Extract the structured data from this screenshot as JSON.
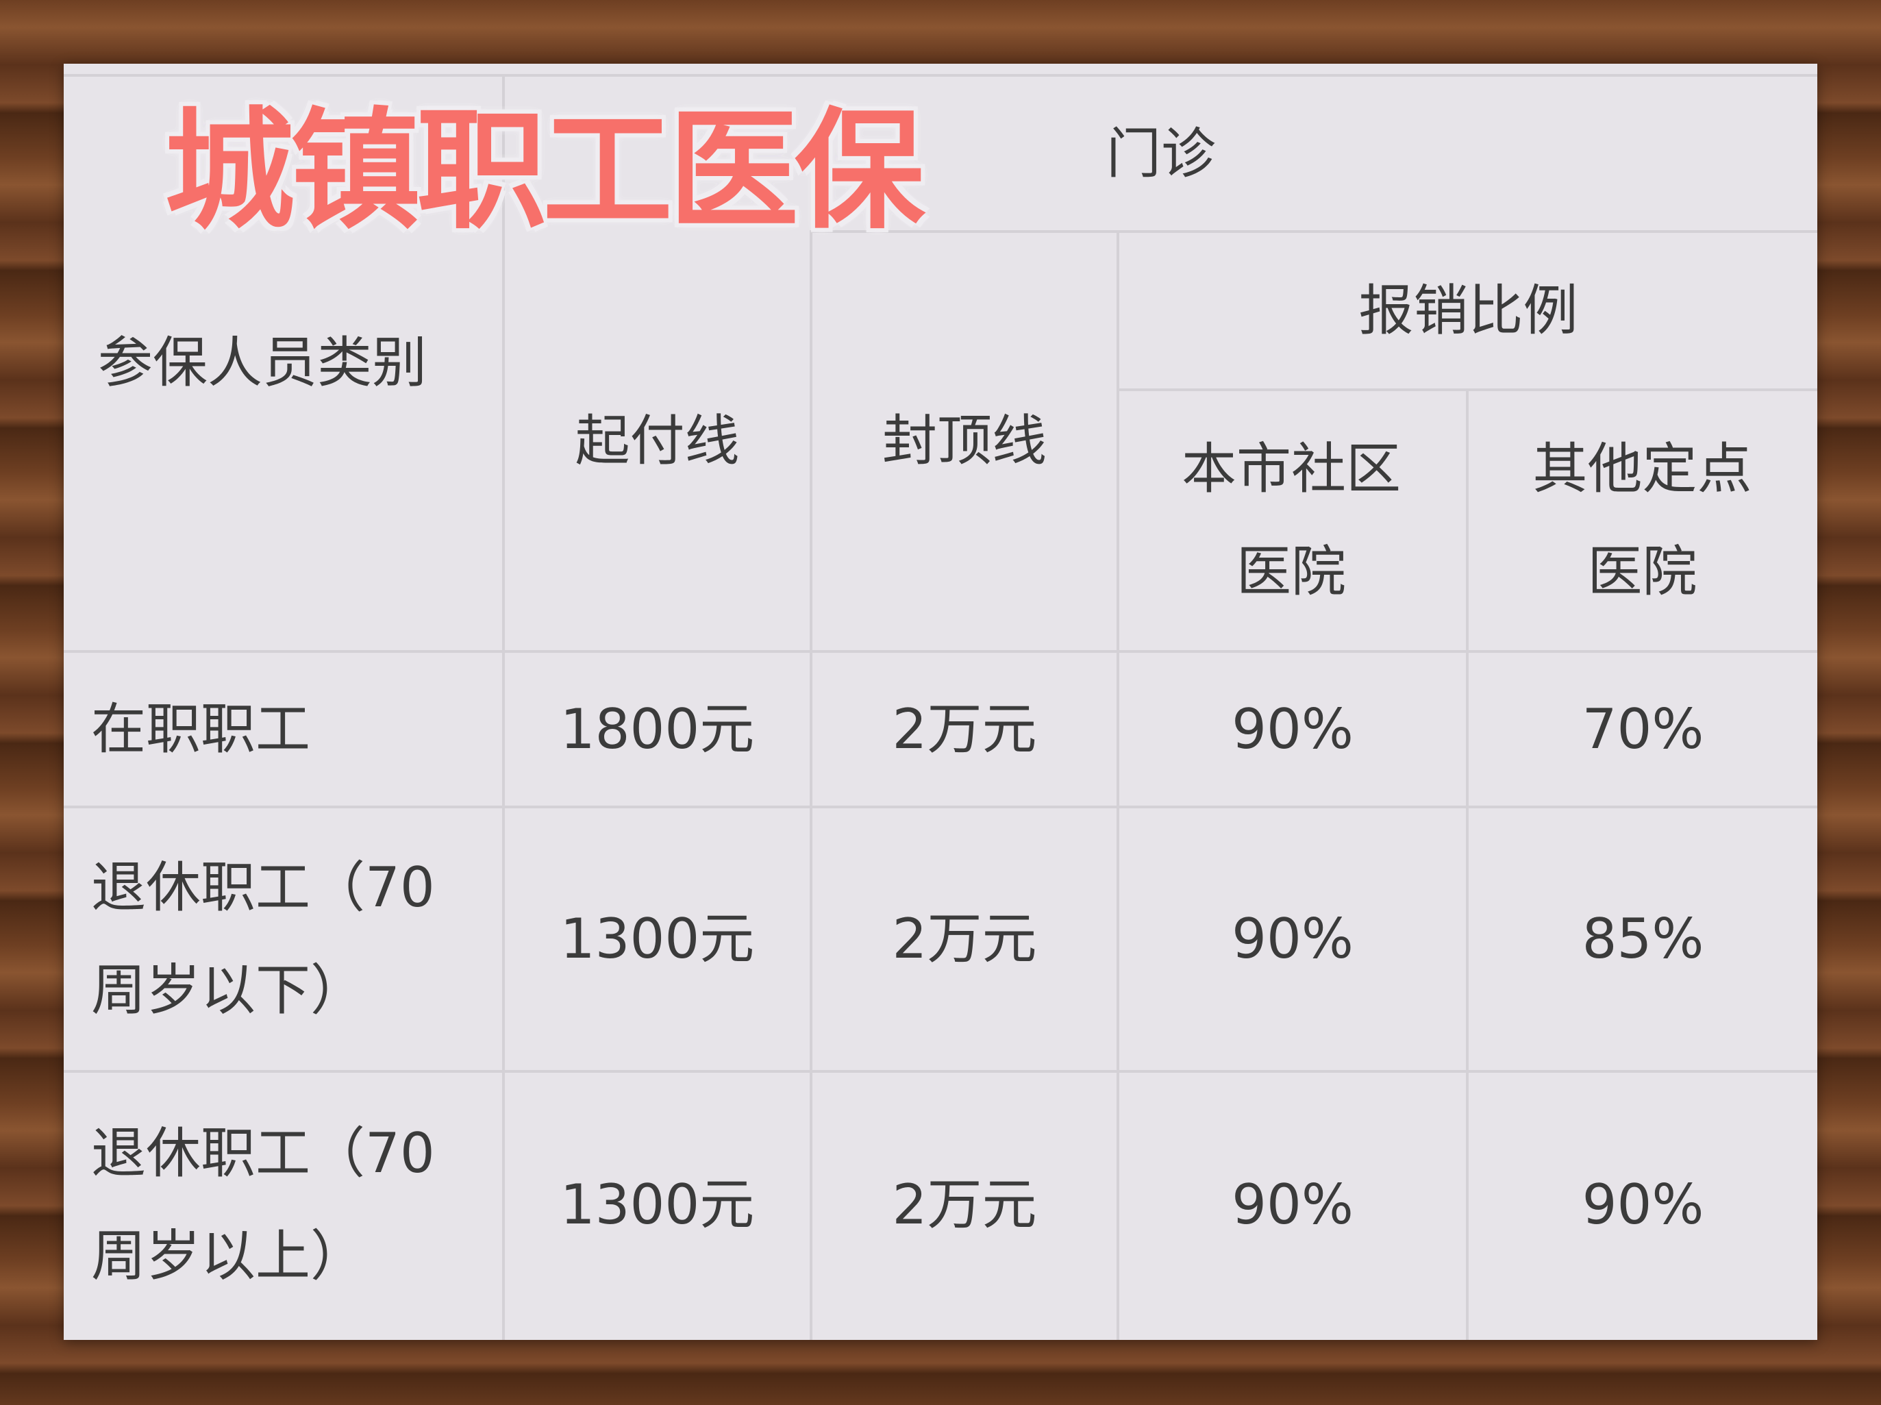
{
  "title": "城镇职工医保",
  "colors": {
    "title": "#f7706a",
    "table_bg": "#e7e4e9",
    "grid": "#d4d1d6",
    "text": "#3b3b3b"
  },
  "header": {
    "category": "参保人员类别",
    "outpatient": "门诊",
    "deductible": "起付线",
    "cap": "封顶线",
    "reimbursement": "报销比例",
    "community_hospital": "本市社区医院",
    "other_hospital": "其他定点医院"
  },
  "rows": [
    {
      "category": "在职职工",
      "deductible": "1800元",
      "cap": "2万元",
      "community": "90%",
      "other": "70%"
    },
    {
      "category": "退休职工（70周岁以下）",
      "deductible": "1300元",
      "cap": "2万元",
      "community": "90%",
      "other": "85%"
    },
    {
      "category": "退休职工（70周岁以上）",
      "deductible": "1300元",
      "cap": "2万元",
      "community": "90%",
      "other": "90%"
    }
  ]
}
